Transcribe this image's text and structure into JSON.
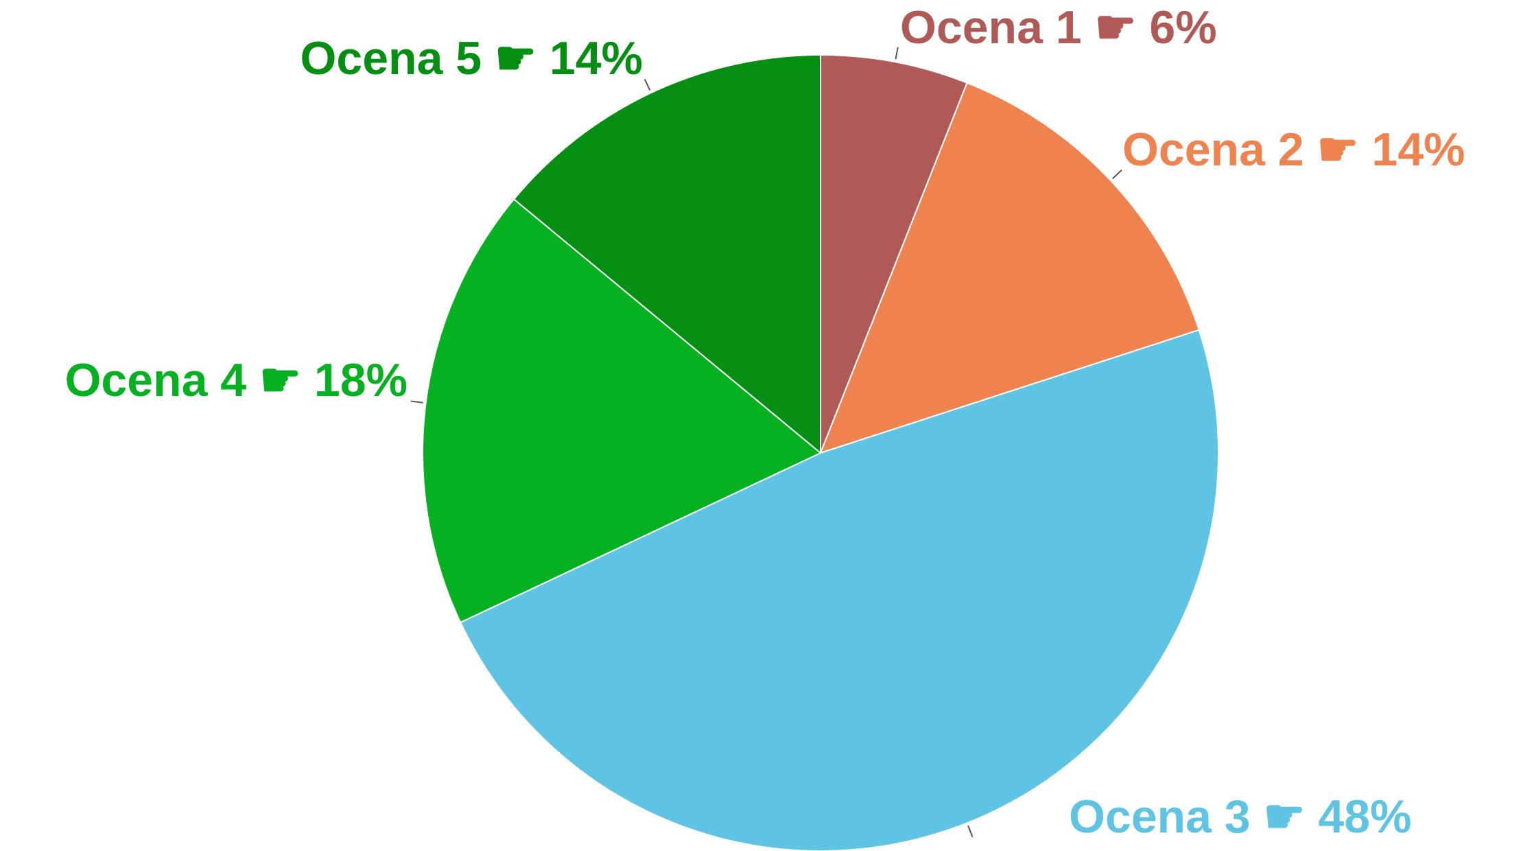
{
  "chart_data": {
    "type": "pie",
    "categories": [
      "Ocena 1",
      "Ocena 2",
      "Ocena 3",
      "Ocena 4",
      "Ocena 5"
    ],
    "values": [
      6,
      14,
      48,
      18,
      14
    ],
    "value_labels": [
      "☛ 6%",
      "☛ 14%",
      "☛ 48%",
      "☛ 18%",
      "☛ 14%"
    ],
    "colors": [
      "#b05a58",
      "#ee8350",
      "#5fc4e4",
      "#05b021",
      "#048f12"
    ]
  }
}
